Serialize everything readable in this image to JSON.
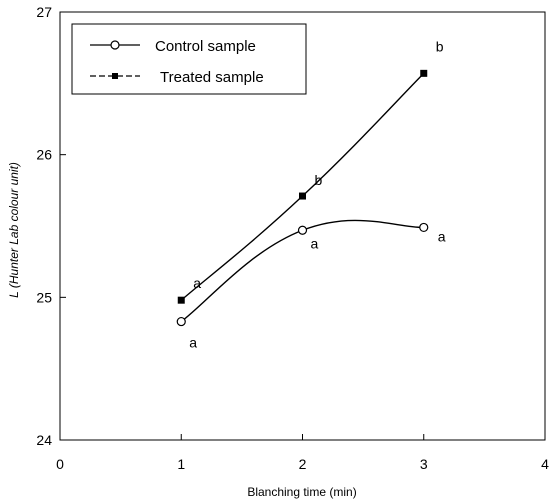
{
  "chart_data": {
    "type": "line",
    "title": "",
    "xlabel": "Blanching time (min)",
    "ylabel": "L (Hunter Lab colour unit)",
    "xlim": [
      0,
      4
    ],
    "ylim": [
      24,
      27
    ],
    "x_ticks": [
      "0",
      "1",
      "2",
      "3",
      "4"
    ],
    "y_ticks": [
      "24",
      "25",
      "26",
      "27"
    ],
    "grid": false,
    "legend": {
      "placement": "top-left",
      "entries": [
        "Control   sample",
        "Treated sample"
      ]
    },
    "series": [
      {
        "name": "Control   sample",
        "marker": "open-circle",
        "x": [
          1,
          2,
          3
        ],
        "y": [
          24.83,
          25.47,
          25.49
        ],
        "labels": [
          "a",
          "a",
          "a"
        ]
      },
      {
        "name": "Treated sample",
        "marker": "filled-square",
        "x": [
          1,
          2,
          3
        ],
        "y": [
          24.98,
          25.71,
          26.57
        ],
        "labels": [
          "a",
          "b",
          "b"
        ]
      }
    ]
  }
}
